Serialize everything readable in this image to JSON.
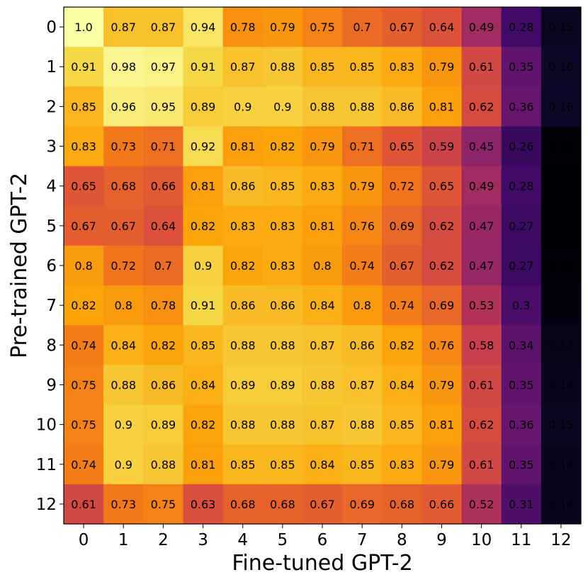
{
  "chart_data": {
    "type": "heatmap",
    "title": "",
    "xlabel": "Fine-tuned GPT-2",
    "ylabel": "Pre-trained GPT-2",
    "x_categories": [
      "0",
      "1",
      "2",
      "3",
      "4",
      "5",
      "6",
      "7",
      "8",
      "9",
      "10",
      "11",
      "12"
    ],
    "y_categories": [
      "0",
      "1",
      "2",
      "3",
      "4",
      "5",
      "6",
      "7",
      "8",
      "9",
      "10",
      "11",
      "12"
    ],
    "colormap": "inferno",
    "value_range": [
      0.1,
      1.0
    ],
    "values": [
      [
        1.0,
        0.87,
        0.87,
        0.94,
        0.78,
        0.79,
        0.75,
        0.7,
        0.67,
        0.64,
        0.49,
        0.28,
        0.15
      ],
      [
        0.91,
        0.98,
        0.97,
        0.91,
        0.87,
        0.88,
        0.85,
        0.85,
        0.83,
        0.79,
        0.61,
        0.35,
        0.16
      ],
      [
        0.85,
        0.96,
        0.95,
        0.89,
        0.9,
        0.9,
        0.88,
        0.88,
        0.86,
        0.81,
        0.62,
        0.36,
        0.16
      ],
      [
        0.83,
        0.73,
        0.71,
        0.92,
        0.81,
        0.82,
        0.79,
        0.71,
        0.65,
        0.59,
        0.45,
        0.26,
        0.11
      ],
      [
        0.65,
        0.68,
        0.66,
        0.81,
        0.86,
        0.85,
        0.83,
        0.79,
        0.72,
        0.65,
        0.49,
        0.28,
        0.1
      ],
      [
        0.67,
        0.67,
        0.64,
        0.82,
        0.83,
        0.83,
        0.81,
        0.76,
        0.69,
        0.62,
        0.47,
        0.27,
        0.1
      ],
      [
        0.8,
        0.72,
        0.7,
        0.9,
        0.82,
        0.83,
        0.8,
        0.74,
        0.67,
        0.62,
        0.47,
        0.27,
        0.11
      ],
      [
        0.82,
        0.8,
        0.78,
        0.91,
        0.86,
        0.86,
        0.84,
        0.8,
        0.74,
        0.69,
        0.53,
        0.3,
        0.12
      ],
      [
        0.74,
        0.84,
        0.82,
        0.85,
        0.88,
        0.88,
        0.87,
        0.86,
        0.82,
        0.76,
        0.58,
        0.34,
        0.13
      ],
      [
        0.75,
        0.88,
        0.86,
        0.84,
        0.89,
        0.89,
        0.88,
        0.87,
        0.84,
        0.79,
        0.61,
        0.35,
        0.14
      ],
      [
        0.75,
        0.9,
        0.89,
        0.82,
        0.88,
        0.88,
        0.87,
        0.88,
        0.85,
        0.81,
        0.62,
        0.36,
        0.15
      ],
      [
        0.74,
        0.9,
        0.88,
        0.81,
        0.85,
        0.85,
        0.84,
        0.85,
        0.83,
        0.79,
        0.61,
        0.35,
        0.14
      ],
      [
        0.61,
        0.73,
        0.75,
        0.63,
        0.68,
        0.68,
        0.67,
        0.69,
        0.68,
        0.66,
        0.52,
        0.31,
        0.14
      ]
    ],
    "value_labels": [
      [
        "1.0",
        "0.87",
        "0.87",
        "0.94",
        "0.78",
        "0.79",
        "0.75",
        "0.7",
        "0.67",
        "0.64",
        "0.49",
        "0.28",
        "0.15"
      ],
      [
        "0.91",
        "0.98",
        "0.97",
        "0.91",
        "0.87",
        "0.88",
        "0.85",
        "0.85",
        "0.83",
        "0.79",
        "0.61",
        "0.35",
        "0.16"
      ],
      [
        "0.85",
        "0.96",
        "0.95",
        "0.89",
        "0.9",
        "0.9",
        "0.88",
        "0.88",
        "0.86",
        "0.81",
        "0.62",
        "0.36",
        "0.16"
      ],
      [
        "0.83",
        "0.73",
        "0.71",
        "0.92",
        "0.81",
        "0.82",
        "0.79",
        "0.71",
        "0.65",
        "0.59",
        "0.45",
        "0.26",
        "0.11"
      ],
      [
        "0.65",
        "0.68",
        "0.66",
        "0.81",
        "0.86",
        "0.85",
        "0.83",
        "0.79",
        "0.72",
        "0.65",
        "0.49",
        "0.28",
        "0.1"
      ],
      [
        "0.67",
        "0.67",
        "0.64",
        "0.82",
        "0.83",
        "0.83",
        "0.81",
        "0.76",
        "0.69",
        "0.62",
        "0.47",
        "0.27",
        "0.1"
      ],
      [
        "0.8",
        "0.72",
        "0.7",
        "0.9",
        "0.82",
        "0.83",
        "0.8",
        "0.74",
        "0.67",
        "0.62",
        "0.47",
        "0.27",
        "0.11"
      ],
      [
        "0.82",
        "0.8",
        "0.78",
        "0.91",
        "0.86",
        "0.86",
        "0.84",
        "0.8",
        "0.74",
        "0.69",
        "0.53",
        "0.3",
        "0.12"
      ],
      [
        "0.74",
        "0.84",
        "0.82",
        "0.85",
        "0.88",
        "0.88",
        "0.87",
        "0.86",
        "0.82",
        "0.76",
        "0.58",
        "0.34",
        "0.13"
      ],
      [
        "0.75",
        "0.88",
        "0.86",
        "0.84",
        "0.89",
        "0.89",
        "0.88",
        "0.87",
        "0.84",
        "0.79",
        "0.61",
        "0.35",
        "0.14"
      ],
      [
        "0.75",
        "0.9",
        "0.89",
        "0.82",
        "0.88",
        "0.88",
        "0.87",
        "0.88",
        "0.85",
        "0.81",
        "0.62",
        "0.36",
        "0.15"
      ],
      [
        "0.74",
        "0.9",
        "0.88",
        "0.81",
        "0.85",
        "0.85",
        "0.84",
        "0.85",
        "0.83",
        "0.79",
        "0.61",
        "0.35",
        "0.14"
      ],
      [
        "0.61",
        "0.73",
        "0.75",
        "0.63",
        "0.68",
        "0.68",
        "0.67",
        "0.69",
        "0.68",
        "0.66",
        "0.52",
        "0.31",
        "0.14"
      ]
    ]
  }
}
